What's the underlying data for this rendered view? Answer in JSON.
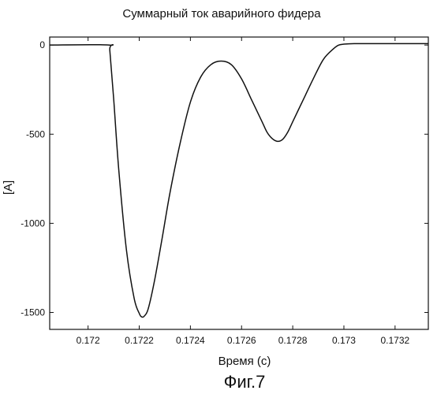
{
  "figure": {
    "caption": "Фиг.7"
  },
  "chart_data": {
    "type": "line",
    "title": "Суммарный ток аварийного фидера",
    "xlabel": "Время (с)",
    "ylabel": "[A]",
    "xlim": [
      0.17185,
      0.17333
    ],
    "ylim": [
      -1595,
      45
    ],
    "grid": false,
    "x_ticks": [
      0.172,
      0.1722,
      0.1724,
      0.1726,
      0.1728,
      0.173,
      0.1732
    ],
    "x_tick_labels": [
      "0.172",
      "0.1722",
      "0.1724",
      "0.1726",
      "0.1728",
      "0.173",
      "0.1732"
    ],
    "y_ticks": [
      0,
      -500,
      -1000,
      -1500
    ],
    "y_tick_labels": [
      "0",
      "-500",
      "-1000",
      "-1500"
    ],
    "series": [
      {
        "x": [
          0.17185,
          0.17208,
          0.172085,
          0.1721,
          0.17212,
          0.17215,
          0.17218,
          0.1722,
          0.17221,
          0.17222,
          0.172235,
          0.17226,
          0.17229,
          0.17232,
          0.17236,
          0.1724,
          0.17244,
          0.17248,
          0.17252,
          0.17256,
          0.1726,
          0.17264,
          0.17268,
          0.1727,
          0.17272,
          0.17274,
          0.17276,
          0.17278,
          0.1728,
          0.17282,
          0.17285,
          0.17288,
          0.17292,
          0.17296,
          0.17298,
          0.173,
          0.17304,
          0.1731,
          0.1732,
          0.17333
        ],
        "y": [
          0,
          0,
          -30,
          -300,
          -700,
          -1150,
          -1420,
          -1505,
          -1525,
          -1520,
          -1480,
          -1320,
          -1080,
          -830,
          -550,
          -320,
          -180,
          -110,
          -90,
          -110,
          -190,
          -310,
          -430,
          -490,
          -525,
          -540,
          -530,
          -490,
          -430,
          -370,
          -280,
          -190,
          -80,
          -20,
          0,
          5,
          8,
          8,
          8,
          8
        ]
      }
    ]
  }
}
